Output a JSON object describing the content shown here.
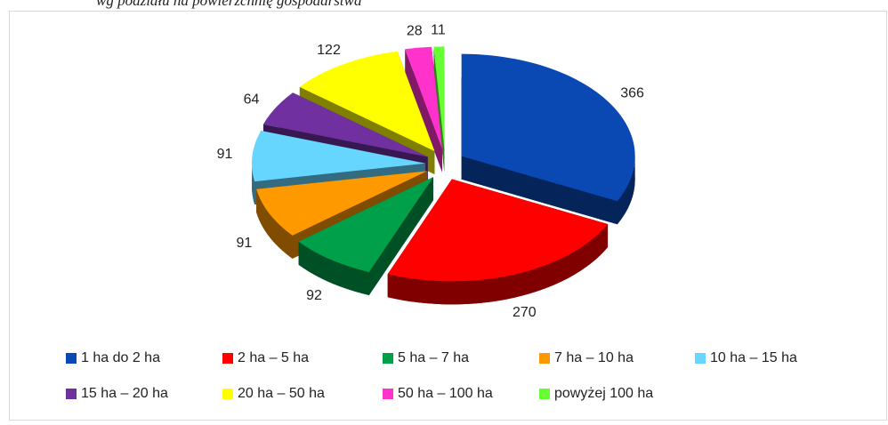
{
  "chart_data": {
    "type": "pie",
    "title": "wg podziału na powierzchnię gospodarstwa",
    "categories": [
      "1 ha do 2 ha",
      "2 ha – 5 ha",
      "5 ha – 7 ha",
      "7 ha – 10 ha",
      "10 ha – 15 ha",
      "15 ha – 20 ha",
      "20 ha – 50 ha",
      "50 ha – 100 ha",
      "powyżej 100 ha"
    ],
    "values": [
      366,
      270,
      92,
      91,
      91,
      64,
      122,
      28,
      11
    ],
    "colors": [
      "#0a48b4",
      "#ff0000",
      "#00a04a",
      "#ff9900",
      "#66d6ff",
      "#7030a0",
      "#ffff00",
      "#ff33cc",
      "#66ff33"
    ],
    "legend": "bottom"
  }
}
